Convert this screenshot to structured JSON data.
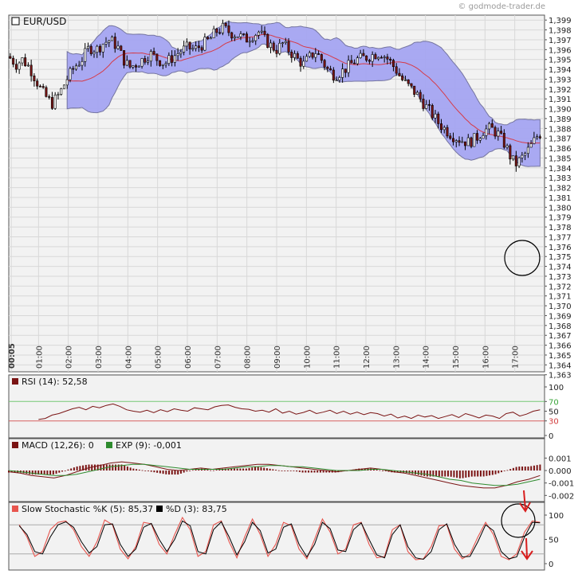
{
  "watermark": "© godmode-trader.de",
  "colors": {
    "band": "#a6a6f2",
    "bandEdge": "#6f6f9c",
    "ma": "#d63b48",
    "up": "#ffffff",
    "down": "#7a1414",
    "black": "#000000",
    "panelBg": "#f2f2f2",
    "green": "#2e8b2e",
    "red": "#d81e1e",
    "macdHist": "#7a1414",
    "stochK": "#e8554e",
    "stochD": "#000000"
  },
  "chart_data": [
    {
      "type": "candlestick",
      "title": "EUR/USD",
      "ylim": [
        1.3633,
        1.3995
      ],
      "yticks": [
        "1,363",
        "1,364",
        "1,365",
        "1,366",
        "1,367",
        "1,368",
        "1,369",
        "1,370",
        "1,371",
        "1,372",
        "1,373",
        "1,374",
        "1,375",
        "1,376",
        "1,377",
        "1,378",
        "1,379",
        "1,380",
        "1,381",
        "1,382",
        "1,383",
        "1,384",
        "1,385",
        "1,386",
        "1,387",
        "1,388",
        "1,389",
        "1,390",
        "1,391",
        "1,392",
        "1,393",
        "1,394",
        "1,395",
        "1,396",
        "1,397",
        "1,398",
        "1,399"
      ],
      "xticks": [
        "00:05",
        "01:00",
        "02:00",
        "03:00",
        "04:00",
        "05:00",
        "06:00",
        "07:00",
        "08:00",
        "09:00",
        "10:00",
        "11:00",
        "12:00",
        "13:00",
        "14:00",
        "15:00",
        "16:00",
        "17:00"
      ],
      "xtick_hours": [
        0.083,
        1,
        2,
        3,
        4,
        5,
        6,
        7,
        8,
        9,
        10,
        11,
        12,
        13,
        14,
        15,
        16,
        17
      ],
      "hours": [
        0,
        18
      ],
      "price_path": [
        [
          0.0,
          1.3953
        ],
        [
          0.25,
          1.3945
        ],
        [
          0.45,
          1.395
        ],
        [
          0.7,
          1.3942
        ],
        [
          0.9,
          1.393
        ],
        [
          1.1,
          1.3918
        ],
        [
          1.25,
          1.3912
        ],
        [
          1.45,
          1.3905
        ],
        [
          1.7,
          1.3915
        ],
        [
          1.95,
          1.393
        ],
        [
          2.2,
          1.3942
        ],
        [
          2.45,
          1.395
        ],
        [
          2.7,
          1.3962
        ],
        [
          2.95,
          1.396
        ],
        [
          3.15,
          1.3966
        ],
        [
          3.4,
          1.397
        ],
        [
          3.65,
          1.3963
        ],
        [
          3.85,
          1.395
        ],
        [
          4.05,
          1.3942
        ],
        [
          4.25,
          1.3945
        ],
        [
          4.5,
          1.395
        ],
        [
          4.75,
          1.3956
        ],
        [
          5.0,
          1.395
        ],
        [
          5.25,
          1.3946
        ],
        [
          5.5,
          1.3952
        ],
        [
          5.75,
          1.3958
        ],
        [
          6.0,
          1.3962
        ],
        [
          6.25,
          1.396
        ],
        [
          6.5,
          1.3965
        ],
        [
          6.75,
          1.397
        ],
        [
          6.95,
          1.3978
        ],
        [
          7.2,
          1.3982
        ],
        [
          7.45,
          1.3977
        ],
        [
          7.7,
          1.3975
        ],
        [
          7.95,
          1.397
        ],
        [
          8.15,
          1.3974
        ],
        [
          8.4,
          1.3978
        ],
        [
          8.6,
          1.397
        ],
        [
          8.8,
          1.3964
        ],
        [
          9.0,
          1.396
        ],
        [
          9.2,
          1.3966
        ],
        [
          9.45,
          1.3958
        ],
        [
          9.7,
          1.395
        ],
        [
          9.9,
          1.3945
        ],
        [
          10.1,
          1.3952
        ],
        [
          10.3,
          1.3958
        ],
        [
          10.5,
          1.395
        ],
        [
          10.7,
          1.394
        ],
        [
          10.95,
          1.3934
        ],
        [
          11.2,
          1.3938
        ],
        [
          11.45,
          1.3944
        ],
        [
          11.7,
          1.395
        ],
        [
          12.0,
          1.3952
        ],
        [
          12.25,
          1.3955
        ],
        [
          12.5,
          1.3957
        ],
        [
          12.75,
          1.395
        ],
        [
          13.0,
          1.394
        ],
        [
          13.2,
          1.393
        ],
        [
          13.45,
          1.3922
        ],
        [
          13.7,
          1.3915
        ],
        [
          13.95,
          1.3905
        ],
        [
          14.2,
          1.3895
        ],
        [
          14.45,
          1.3885
        ],
        [
          14.7,
          1.3878
        ],
        [
          14.95,
          1.3872
        ],
        [
          15.2,
          1.3868
        ],
        [
          15.45,
          1.3866
        ],
        [
          15.7,
          1.387
        ],
        [
          15.95,
          1.3878
        ],
        [
          16.2,
          1.388
        ],
        [
          16.45,
          1.3874
        ],
        [
          16.7,
          1.3862
        ],
        [
          16.9,
          1.3848
        ],
        [
          17.05,
          1.3844
        ],
        [
          17.3,
          1.3852
        ],
        [
          17.5,
          1.386
        ],
        [
          17.75,
          1.3872
        ],
        [
          17.9,
          1.3876
        ]
      ],
      "band_start_hour": 1.45,
      "band_end_hour": 17.85
    },
    {
      "type": "line",
      "title": "RSI (14): 52,58",
      "ylim": [
        0,
        100
      ],
      "yticks": [
        "100",
        "70",
        "50",
        "30",
        "0"
      ],
      "ytick_values": [
        100,
        70,
        50,
        30,
        0
      ],
      "levels": [
        70,
        30
      ],
      "start_hour": 1.0,
      "values": [
        33,
        35,
        42,
        45,
        50,
        55,
        58,
        53,
        60,
        57,
        62,
        65,
        60,
        53,
        50,
        48,
        52,
        47,
        53,
        49,
        55,
        52,
        50,
        57,
        55,
        53,
        59,
        62,
        63,
        58,
        55,
        54,
        50,
        52,
        48,
        55,
        46,
        50,
        44,
        47,
        52,
        45,
        48,
        52,
        45,
        50,
        44,
        48,
        43,
        47,
        45,
        40,
        44,
        36,
        40,
        35,
        42,
        38,
        41,
        35,
        39,
        43,
        37,
        45,
        41,
        36,
        42,
        40,
        35,
        45,
        48,
        40,
        44,
        50,
        53
      ]
    },
    {
      "type": "bar+line",
      "title_macd": "MACD (12,26): 0",
      "title_exp": "EXP (9): -0,001",
      "ylim": [
        -0.0023,
        0.0016
      ],
      "yticks": [
        "0.001",
        "0.000",
        "-0.001",
        "-0.002"
      ],
      "ytick_values": [
        0.001,
        0,
        -0.001,
        -0.002
      ],
      "start_hour": 0.0,
      "macd": [
        -0.0001,
        -0.0002,
        -0.0004,
        -0.0005,
        -0.0006,
        -0.0004,
        -0.0001,
        0.0002,
        0.0004,
        0.0006,
        0.0007,
        0.0006,
        0.0005,
        0.0003,
        0.0001,
        0.0,
        0.0001,
        0.0002,
        0.0001,
        0.0002,
        0.0003,
        0.0004,
        0.0005,
        0.0005,
        0.0004,
        0.0003,
        0.0002,
        0.0001,
        0.0,
        -0.0001,
        0.0,
        0.0001,
        0.0002,
        0.0001,
        -0.0001,
        -0.0002,
        -0.0004,
        -0.0006,
        -0.0008,
        -0.001,
        -0.0012,
        -0.0013,
        -0.0014,
        -0.0014,
        -0.0012,
        -0.0009,
        -0.0007,
        -0.0004
      ],
      "signal": [
        0.0,
        -0.0001,
        -0.0002,
        -0.0003,
        -0.0004,
        -0.0004,
        -0.0003,
        -0.0001,
        0.0001,
        0.0003,
        0.0004,
        0.0005,
        0.0005,
        0.0004,
        0.0003,
        0.0002,
        0.0001,
        0.0001,
        0.0001,
        0.0001,
        0.0002,
        0.0003,
        0.0003,
        0.0004,
        0.0004,
        0.0003,
        0.0003,
        0.0002,
        0.0001,
        0.0,
        0.0,
        0.0,
        0.0001,
        0.0001,
        0.0,
        -0.0001,
        -0.0002,
        -0.0003,
        -0.0005,
        -0.0007,
        -0.0008,
        -0.001,
        -0.0011,
        -0.0012,
        -0.0012,
        -0.0011,
        -0.0009,
        -0.0007
      ]
    },
    {
      "type": "line",
      "title_k": "Slow Stochastic %K (5): 85,37",
      "title_d": "%D (3): 83,75",
      "ylim": [
        0,
        100
      ],
      "yticks": [
        "100",
        "50",
        "0"
      ],
      "ytick_values": [
        100,
        50,
        0
      ],
      "levels": [
        80,
        20
      ],
      "start_hour": 0.35,
      "k": [
        80,
        55,
        15,
        25,
        70,
        85,
        88,
        70,
        35,
        15,
        45,
        90,
        80,
        30,
        10,
        35,
        85,
        82,
        40,
        20,
        60,
        95,
        70,
        15,
        25,
        80,
        88,
        45,
        12,
        55,
        92,
        60,
        15,
        40,
        85,
        78,
        30,
        10,
        50,
        92,
        65,
        20,
        30,
        80,
        85,
        40,
        12,
        15,
        70,
        80,
        25,
        8,
        10,
        35,
        78,
        80,
        30,
        10,
        20,
        55,
        85,
        60,
        15,
        8,
        20,
        65,
        88,
        85
      ],
      "d": [
        78,
        60,
        25,
        20,
        55,
        80,
        86,
        75,
        45,
        22,
        35,
        80,
        82,
        40,
        15,
        30,
        75,
        83,
        50,
        25,
        50,
        88,
        78,
        25,
        20,
        70,
        86,
        55,
        18,
        45,
        85,
        68,
        22,
        30,
        75,
        82,
        40,
        14,
        40,
        85,
        72,
        28,
        25,
        70,
        84,
        50,
        18,
        12,
        60,
        80,
        35,
        12,
        9,
        25,
        70,
        82,
        40,
        14,
        15,
        45,
        80,
        68,
        25,
        10,
        14,
        55,
        85,
        84
      ]
    }
  ]
}
